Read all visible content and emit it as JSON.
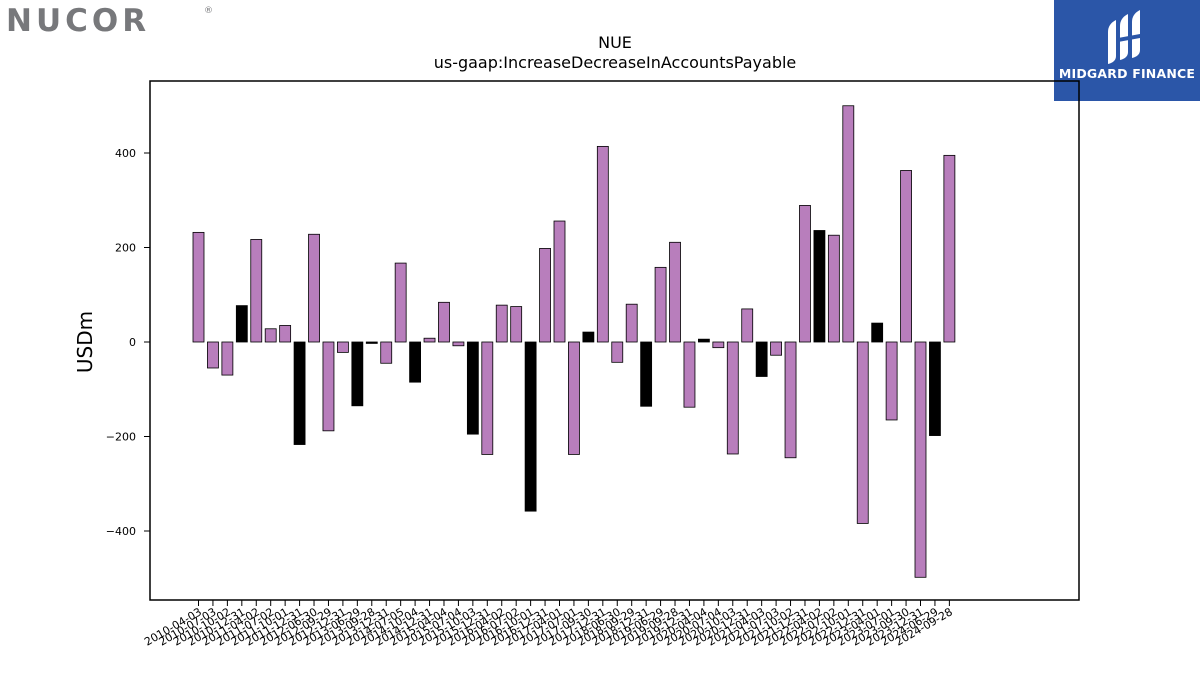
{
  "logos": {
    "left": "NUCOR",
    "left_mark": "®",
    "right": "MIDGARD FINANCE",
    "right_color": "#2b56a8"
  },
  "colors": {
    "bar_fill": "#b87ebc",
    "bar_highlight": "#000000",
    "bar_edge": "#000000"
  },
  "chart_data": {
    "type": "bar",
    "title": "NUE",
    "subtitle": "us-gaap:IncreaseDecreaseInAccountsPayable",
    "xlabel": "",
    "ylabel": "USDm",
    "ylim": [
      -550,
      550
    ],
    "yticks": [
      -400,
      -200,
      0,
      200,
      400
    ],
    "grid": false,
    "categories": [
      "2010-04-03",
      "2010-07-03",
      "2010-10-02",
      "2010-12-31",
      "2011-04-02",
      "2011-07-02",
      "2011-10-01",
      "2011-12-31",
      "2012-06-30",
      "2012-09-29",
      "2012-12-31",
      "2013-06-29",
      "2013-09-28",
      "2013-12-31",
      "2014-07-05",
      "2014-10-04",
      "2014-12-31",
      "2015-04-04",
      "2015-07-04",
      "2015-10-03",
      "2015-12-31",
      "2016-04-02",
      "2016-07-02",
      "2016-10-01",
      "2016-12-31",
      "2017-04-01",
      "2017-07-01",
      "2017-09-30",
      "2017-12-31",
      "2018-06-30",
      "2018-09-29",
      "2018-12-31",
      "2019-06-29",
      "2019-09-28",
      "2019-12-31",
      "2020-04-04",
      "2020-07-04",
      "2020-10-03",
      "2020-12-31",
      "2021-04-03",
      "2021-07-03",
      "2021-10-02",
      "2021-12-31",
      "2022-04-02",
      "2022-07-02",
      "2022-10-01",
      "2022-12-31",
      "2023-04-01",
      "2023-07-01",
      "2023-09-30",
      "2023-12-31",
      "2024-06-29",
      "2024-09-28"
    ],
    "values": [
      232,
      -55,
      -70,
      77,
      217,
      28,
      35,
      -217,
      228,
      -188,
      -22,
      -135,
      -3,
      -45,
      167,
      -85,
      8,
      84,
      -8,
      -195,
      -238,
      78,
      75,
      -358,
      198,
      256,
      -238,
      21,
      414,
      -43,
      80,
      -136,
      158,
      211,
      -138,
      6,
      -12,
      -237,
      70,
      -73,
      -28,
      -245,
      289,
      236,
      226,
      500,
      -384,
      40,
      -165,
      363,
      -498,
      -198,
      395
    ],
    "highlighted": [
      3,
      7,
      11,
      12,
      15,
      19,
      23,
      27,
      31,
      35,
      39,
      43,
      47,
      51
    ]
  }
}
